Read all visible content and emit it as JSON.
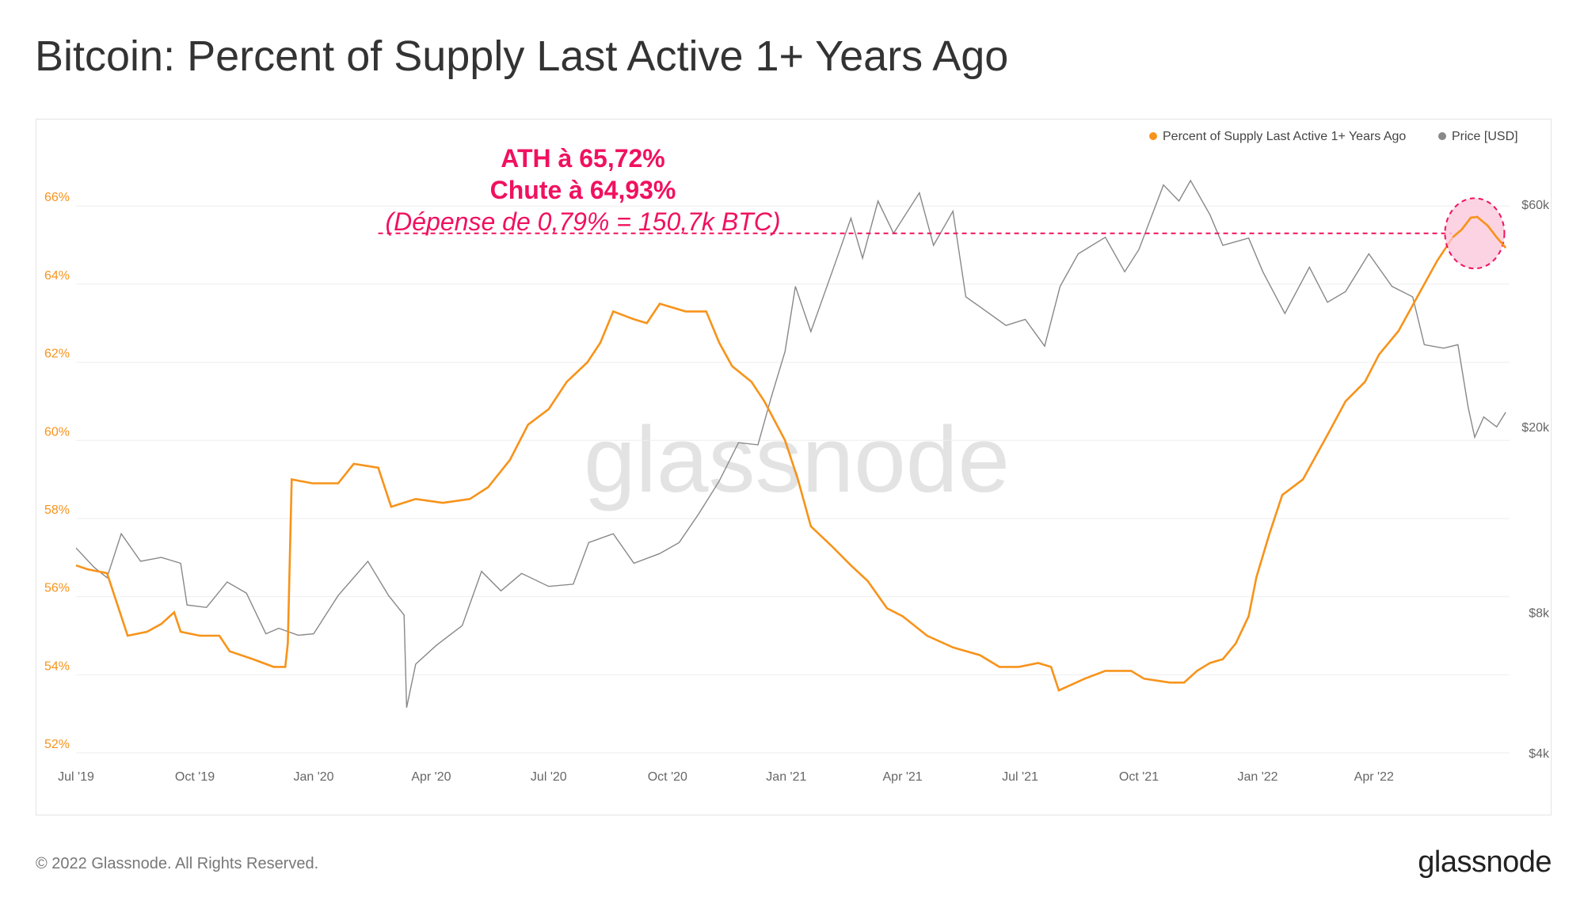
{
  "title": "Bitcoin: Percent of Supply Last Active 1+ Years Ago",
  "footer": {
    "copyright": "© 2022 Glassnode. All Rights Reserved.",
    "logo": "glassnode"
  },
  "watermark": "glassnode",
  "colors": {
    "supply": "#f7931a",
    "price": "#888888",
    "grid": "#eeeeee",
    "annotation": "#f0115f",
    "highlight_fill": "#fbc4d8"
  },
  "chart_data": {
    "type": "line",
    "title": "Bitcoin: Percent of Supply Last Active 1+ Years Ago",
    "legend": {
      "placement": "top-right",
      "items": [
        "Percent of Supply Last Active 1+ Years Ago",
        "Price [USD]"
      ]
    },
    "x_ticks": [
      "Jul '19",
      "Oct '19",
      "Jan '20",
      "Apr '20",
      "Jul '20",
      "Oct '20",
      "Jan '21",
      "Apr '21",
      "Jul '21",
      "Oct '21",
      "Jan '22",
      "Apr '22"
    ],
    "x_range": [
      "2019-07-01",
      "2022-07-15"
    ],
    "y_left": {
      "ticks": [
        52,
        54,
        56,
        58,
        60,
        62,
        64,
        66
      ],
      "tick_labels": [
        "52%",
        "54%",
        "56%",
        "58%",
        "60%",
        "62%",
        "64%",
        "66%"
      ],
      "range": [
        52,
        67.2
      ],
      "unit": "%"
    },
    "y_right": {
      "scale": "log",
      "ticks": [
        4000,
        8000,
        20000,
        60000
      ],
      "tick_labels": [
        "$4k",
        "$8k",
        "$20k",
        "$60k"
      ],
      "range": [
        4000,
        75000
      ]
    },
    "grid": true,
    "series": [
      {
        "name": "Percent of Supply Last Active 1+ Years Ago",
        "axis": "left",
        "points": [
          [
            "2019-07-01",
            56.8
          ],
          [
            "2019-07-10",
            56.7
          ],
          [
            "2019-07-25",
            56.6
          ],
          [
            "2019-08-10",
            55.0
          ],
          [
            "2019-08-25",
            55.1
          ],
          [
            "2019-09-05",
            55.3
          ],
          [
            "2019-09-15",
            55.6
          ],
          [
            "2019-09-20",
            55.1
          ],
          [
            "2019-10-05",
            55.0
          ],
          [
            "2019-10-20",
            55.0
          ],
          [
            "2019-10-28",
            54.6
          ],
          [
            "2019-11-15",
            54.4
          ],
          [
            "2019-12-01",
            54.2
          ],
          [
            "2019-12-10",
            54.2
          ],
          [
            "2019-12-12",
            54.8
          ],
          [
            "2019-12-15",
            59.0
          ],
          [
            "2019-12-31",
            58.9
          ],
          [
            "2020-01-20",
            58.9
          ],
          [
            "2020-02-01",
            59.4
          ],
          [
            "2020-02-20",
            59.3
          ],
          [
            "2020-03-01",
            58.3
          ],
          [
            "2020-03-20",
            58.5
          ],
          [
            "2020-04-10",
            58.4
          ],
          [
            "2020-05-01",
            58.5
          ],
          [
            "2020-05-15",
            58.8
          ],
          [
            "2020-06-01",
            59.5
          ],
          [
            "2020-06-15",
            60.4
          ],
          [
            "2020-07-01",
            60.8
          ],
          [
            "2020-07-15",
            61.5
          ],
          [
            "2020-07-31",
            62.0
          ],
          [
            "2020-08-10",
            62.5
          ],
          [
            "2020-08-20",
            63.3
          ],
          [
            "2020-09-05",
            63.1
          ],
          [
            "2020-09-15",
            63.0
          ],
          [
            "2020-09-25",
            63.5
          ],
          [
            "2020-10-15",
            63.3
          ],
          [
            "2020-10-31",
            63.3
          ],
          [
            "2020-11-10",
            62.5
          ],
          [
            "2020-11-20",
            61.9
          ],
          [
            "2020-12-05",
            61.5
          ],
          [
            "2020-12-15",
            61.0
          ],
          [
            "2020-12-31",
            60.0
          ],
          [
            "2021-01-10",
            59.0
          ],
          [
            "2021-01-20",
            57.8
          ],
          [
            "2021-02-05",
            57.3
          ],
          [
            "2021-02-20",
            56.8
          ],
          [
            "2021-03-05",
            56.4
          ],
          [
            "2021-03-20",
            55.7
          ],
          [
            "2021-04-01",
            55.5
          ],
          [
            "2021-04-20",
            55.0
          ],
          [
            "2021-05-10",
            54.7
          ],
          [
            "2021-05-31",
            54.5
          ],
          [
            "2021-06-15",
            54.2
          ],
          [
            "2021-06-30",
            54.2
          ],
          [
            "2021-07-15",
            54.3
          ],
          [
            "2021-07-25",
            54.2
          ],
          [
            "2021-07-31",
            53.6
          ],
          [
            "2021-08-20",
            53.9
          ],
          [
            "2021-09-05",
            54.1
          ],
          [
            "2021-09-25",
            54.1
          ],
          [
            "2021-10-05",
            53.9
          ],
          [
            "2021-10-25",
            53.8
          ],
          [
            "2021-11-05",
            53.8
          ],
          [
            "2021-11-15",
            54.1
          ],
          [
            "2021-11-25",
            54.3
          ],
          [
            "2021-12-05",
            54.4
          ],
          [
            "2021-12-15",
            54.8
          ],
          [
            "2021-12-25",
            55.5
          ],
          [
            "2021-12-31",
            56.5
          ],
          [
            "2022-01-10",
            57.6
          ],
          [
            "2022-01-20",
            58.6
          ],
          [
            "2022-02-05",
            59.0
          ],
          [
            "2022-02-15",
            59.6
          ],
          [
            "2022-02-25",
            60.2
          ],
          [
            "2022-03-10",
            61.0
          ],
          [
            "2022-03-25",
            61.5
          ],
          [
            "2022-04-05",
            62.2
          ],
          [
            "2022-04-20",
            62.8
          ],
          [
            "2022-05-05",
            63.7
          ],
          [
            "2022-05-20",
            64.6
          ],
          [
            "2022-06-01",
            65.2
          ],
          [
            "2022-06-08",
            65.4
          ],
          [
            "2022-06-15",
            65.7
          ],
          [
            "2022-06-20",
            65.72
          ],
          [
            "2022-06-28",
            65.5
          ],
          [
            "2022-07-05",
            65.2
          ],
          [
            "2022-07-12",
            64.93
          ]
        ]
      },
      {
        "name": "Price [USD]",
        "axis": "right",
        "points": [
          [
            "2019-07-01",
            11000
          ],
          [
            "2019-07-15",
            10000
          ],
          [
            "2019-07-25",
            9500
          ],
          [
            "2019-08-05",
            11800
          ],
          [
            "2019-08-20",
            10300
          ],
          [
            "2019-09-05",
            10500
          ],
          [
            "2019-09-20",
            10200
          ],
          [
            "2019-09-25",
            8300
          ],
          [
            "2019-10-10",
            8200
          ],
          [
            "2019-10-26",
            9300
          ],
          [
            "2019-11-10",
            8800
          ],
          [
            "2019-11-25",
            7200
          ],
          [
            "2019-12-05",
            7400
          ],
          [
            "2019-12-20",
            7150
          ],
          [
            "2020-01-01",
            7200
          ],
          [
            "2020-01-20",
            8700
          ],
          [
            "2020-02-12",
            10300
          ],
          [
            "2020-02-28",
            8700
          ],
          [
            "2020-03-11",
            7900
          ],
          [
            "2020-03-13",
            5000
          ],
          [
            "2020-03-20",
            6200
          ],
          [
            "2020-04-05",
            6800
          ],
          [
            "2020-04-25",
            7500
          ],
          [
            "2020-05-10",
            9800
          ],
          [
            "2020-05-25",
            8900
          ],
          [
            "2020-06-10",
            9700
          ],
          [
            "2020-07-01",
            9100
          ],
          [
            "2020-07-20",
            9200
          ],
          [
            "2020-08-01",
            11300
          ],
          [
            "2020-08-20",
            11800
          ],
          [
            "2020-09-05",
            10200
          ],
          [
            "2020-09-25",
            10700
          ],
          [
            "2020-10-10",
            11300
          ],
          [
            "2020-10-25",
            13000
          ],
          [
            "2020-11-10",
            15300
          ],
          [
            "2020-11-25",
            18500
          ],
          [
            "2020-12-10",
            18300
          ],
          [
            "2020-12-20",
            23000
          ],
          [
            "2020-12-31",
            29000
          ],
          [
            "2021-01-08",
            40000
          ],
          [
            "2021-01-20",
            32000
          ],
          [
            "2021-02-08",
            45000
          ],
          [
            "2021-02-20",
            56000
          ],
          [
            "2021-03-01",
            46000
          ],
          [
            "2021-03-13",
            61000
          ],
          [
            "2021-03-25",
            52000
          ],
          [
            "2021-04-14",
            63500
          ],
          [
            "2021-04-25",
            49000
          ],
          [
            "2021-05-10",
            58000
          ],
          [
            "2021-05-20",
            38000
          ],
          [
            "2021-06-01",
            36000
          ],
          [
            "2021-06-20",
            33000
          ],
          [
            "2021-07-05",
            34000
          ],
          [
            "2021-07-20",
            29800
          ],
          [
            "2021-08-01",
            40000
          ],
          [
            "2021-08-15",
            47000
          ],
          [
            "2021-09-05",
            51000
          ],
          [
            "2021-09-20",
            43000
          ],
          [
            "2021-10-01",
            48000
          ],
          [
            "2021-10-20",
            66000
          ],
          [
            "2021-11-01",
            61000
          ],
          [
            "2021-11-10",
            67500
          ],
          [
            "2021-11-25",
            57000
          ],
          [
            "2021-12-05",
            49000
          ],
          [
            "2021-12-25",
            50800
          ],
          [
            "2022-01-05",
            43000
          ],
          [
            "2022-01-22",
            35000
          ],
          [
            "2022-02-10",
            44000
          ],
          [
            "2022-02-24",
            37000
          ],
          [
            "2022-03-10",
            39000
          ],
          [
            "2022-03-28",
            47000
          ],
          [
            "2022-04-15",
            40000
          ],
          [
            "2022-05-01",
            38000
          ],
          [
            "2022-05-10",
            30000
          ],
          [
            "2022-05-25",
            29500
          ],
          [
            "2022-06-05",
            30000
          ],
          [
            "2022-06-13",
            22000
          ],
          [
            "2022-06-18",
            19000
          ],
          [
            "2022-06-25",
            21000
          ],
          [
            "2022-07-05",
            20000
          ],
          [
            "2022-07-12",
            21500
          ]
        ]
      }
    ],
    "annotation": {
      "lines": [
        "ATH à 65,72%",
        "Chute à 64,93%",
        "(Dépense de 0,79% = 150,7k BTC)"
      ],
      "reference_value": 65.3,
      "reference_from": "2020-02-20",
      "highlight": {
        "center": [
          "2022-06-18",
          65.3
        ],
        "rx_days": 23,
        "ry": 0.9
      }
    }
  }
}
